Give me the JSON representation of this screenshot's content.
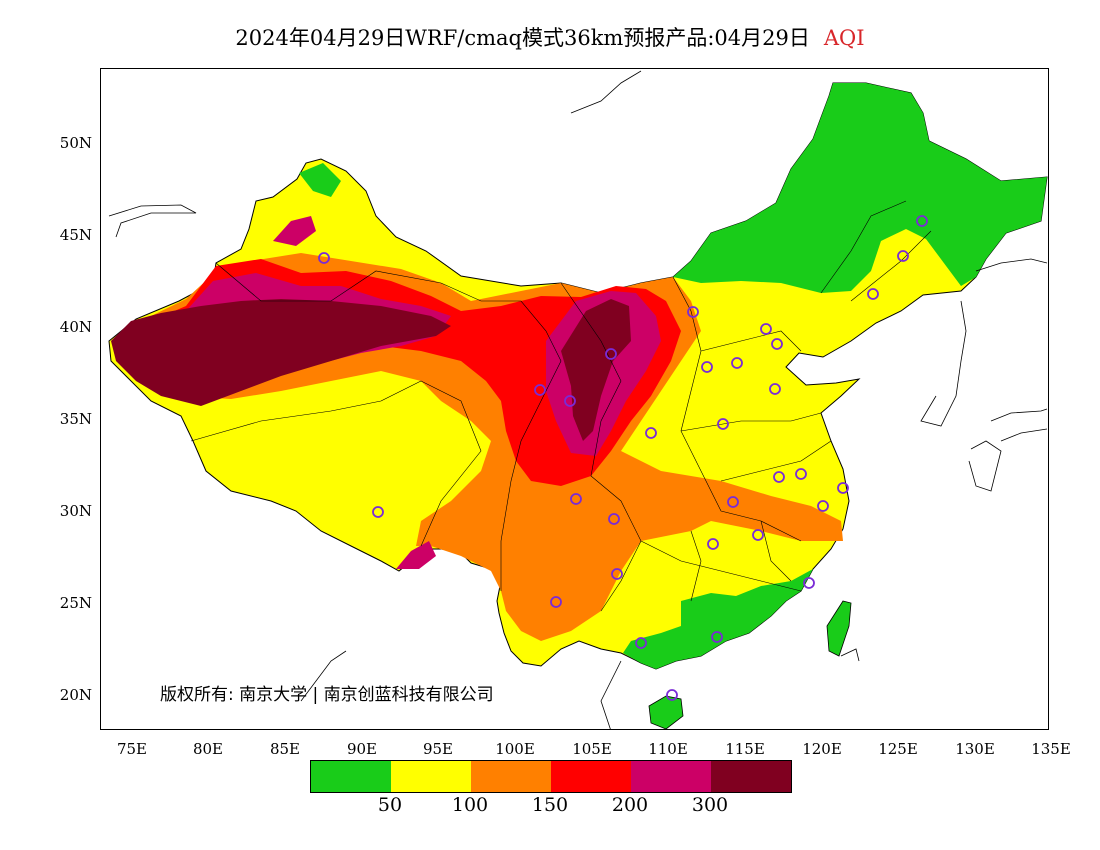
{
  "title": {
    "text": "2024年04月29日WRF/cmaq模式36km预报产品:04月29日",
    "variable": "AQI"
  },
  "lat_labels": [
    "50N",
    "45N",
    "40N",
    "35N",
    "30N",
    "25N",
    "20N"
  ],
  "lon_labels": [
    "75E",
    "80E",
    "85E",
    "90E",
    "95E",
    "100E",
    "105E",
    "110E",
    "115E",
    "120E",
    "125E",
    "130E",
    "135E"
  ],
  "copyright": "版权所有: 南京大学 | 南京创蓝科技有限公司",
  "legend": {
    "colors": [
      "#19cc19",
      "#ffff00",
      "#ff8000",
      "#ff0000",
      "#cc0066",
      "#800020"
    ],
    "labels": [
      "50",
      "100",
      "150",
      "200",
      "300"
    ]
  },
  "colors": {
    "good": "#19cc19",
    "moderate": "#ffff00",
    "sensitive": "#ff8000",
    "unhealthy": "#ff0000",
    "very_unhealthy": "#cc0066",
    "hazardous": "#800020",
    "station_marker": "#7a2bd6",
    "title_accent": "#d8262a"
  },
  "map": {
    "region": "China",
    "lon_range": [
      73,
      135
    ],
    "lat_range": [
      18,
      54
    ],
    "stations_shown": true
  }
}
